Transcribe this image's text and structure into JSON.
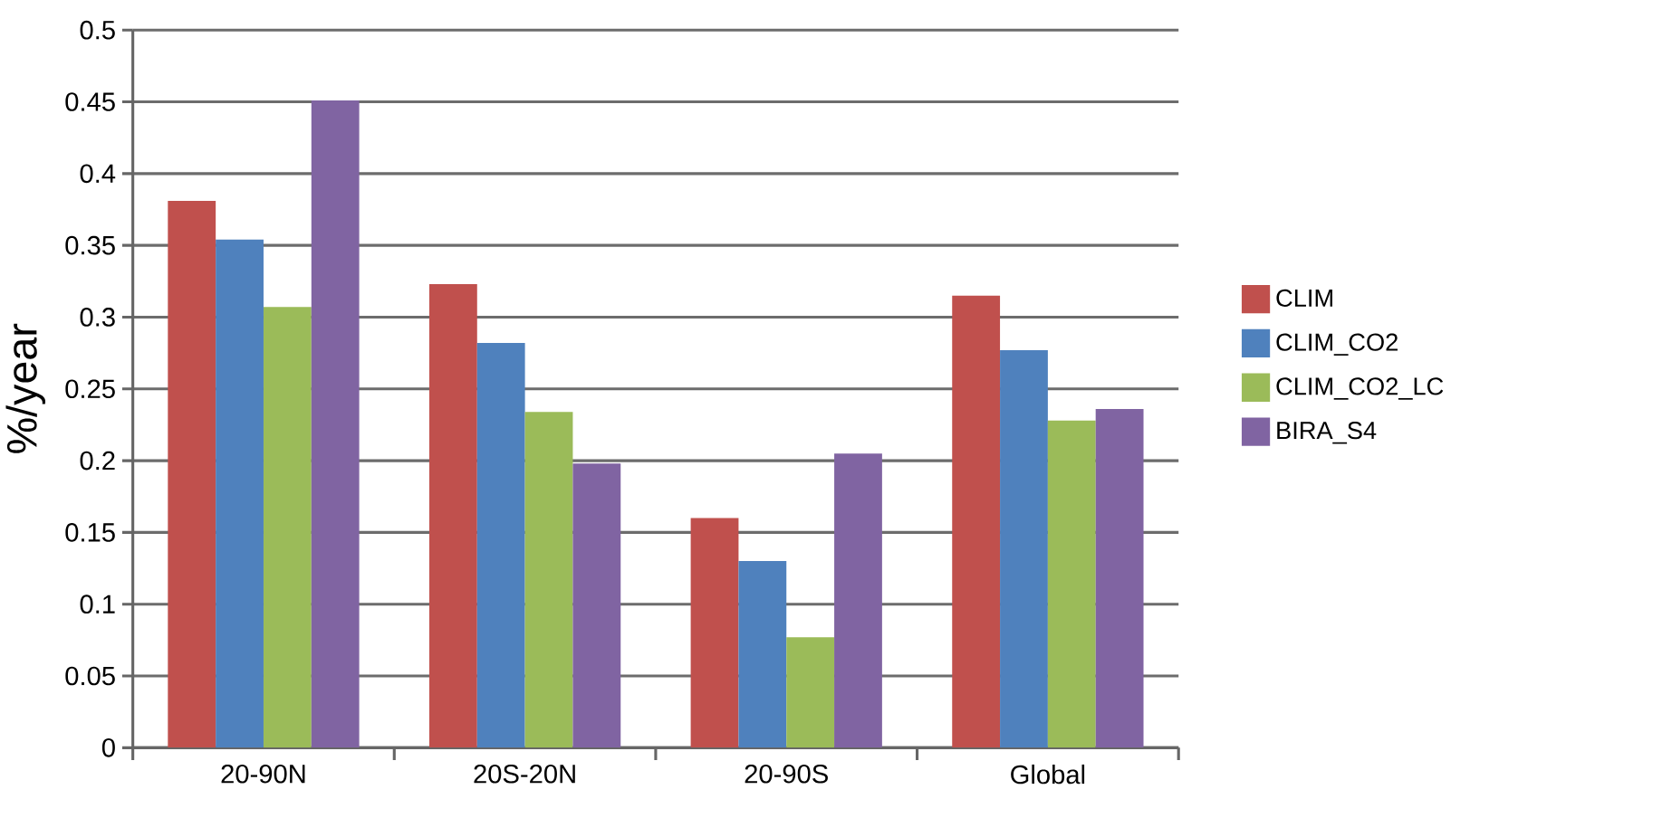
{
  "chart_data": {
    "type": "bar",
    "ylabel": "%/year",
    "categories": [
      "20-90N",
      "20S-20N",
      "20-90S",
      "Global"
    ],
    "series": [
      {
        "name": "CLIM",
        "color": "#c0504d",
        "values": [
          0.381,
          0.323,
          0.16,
          0.315
        ]
      },
      {
        "name": "CLIM_CO2",
        "color": "#4f81bd",
        "values": [
          0.354,
          0.282,
          0.13,
          0.277
        ]
      },
      {
        "name": "CLIM_CO2_LC",
        "color": "#9bbb59",
        "values": [
          0.307,
          0.234,
          0.077,
          0.228
        ]
      },
      {
        "name": "BIRA_S4",
        "color": "#8064a2",
        "values": [
          0.451,
          0.198,
          0.205,
          0.236
        ]
      }
    ],
    "ylim": [
      0,
      0.5
    ],
    "yticks": [
      0,
      0.05,
      0.1,
      0.15,
      0.2,
      0.25,
      0.3,
      0.35,
      0.4,
      0.45,
      0.5
    ],
    "grid": "y",
    "legend": "right"
  }
}
